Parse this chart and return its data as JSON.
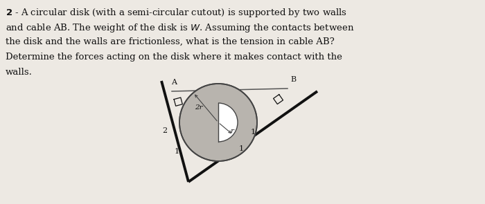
{
  "bg_color": "#ede9e3",
  "text_color": "#111111",
  "lines": [
    "2 - A circular disk (with a semi-circular cutout) is supported by two walls",
    "and cable AB. The weight of the disk is \\textit{W}.  Assuming the contacts between",
    "the disk and the walls are frictionless, what is the tension in cable AB?",
    "Determine the forces acting on the disk where it makes contact with the",
    "walls."
  ],
  "disk_color": "#b8b4ae",
  "disk_edge_color": "#444444",
  "wall_color": "#111111",
  "cable_color": "#555555",
  "label_A": "A",
  "label_B": "B",
  "label_2r": "2r",
  "label_r": "r",
  "label_left_v": "2",
  "label_left_h": "1",
  "label_right_v": "1",
  "label_right_h": "1",
  "text_fontsize": 9.5,
  "label_fontsize": 8.0,
  "lw_wall": 2.8,
  "lw_cable": 1.1,
  "lw_disk": 1.3
}
